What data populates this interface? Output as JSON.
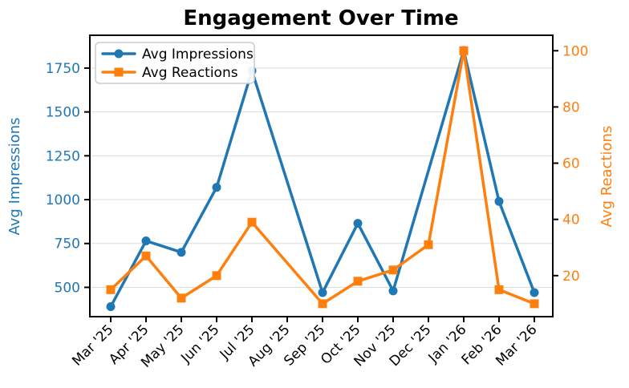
{
  "title": "Engagement Over Time",
  "chart_data": {
    "type": "line",
    "title": "Engagement Over Time",
    "categories": [
      "Mar '25",
      "Apr '25",
      "May '25",
      "Jun '25",
      "Jul '25",
      "Aug '25",
      "Sep '25",
      "Oct '25",
      "Nov '25",
      "Dec '25",
      "Jan '26",
      "Feb '26",
      "Mar '26"
    ],
    "series": [
      {
        "name": "Avg Impressions",
        "axis": "left",
        "color": "#1f77b4",
        "marker": "circle",
        "values": [
          390,
          765,
          700,
          1070,
          1735,
          null,
          470,
          865,
          480,
          null,
          1850,
          990,
          470
        ]
      },
      {
        "name": "Avg Reactions",
        "axis": "right",
        "color": "#ff7f0e",
        "marker": "square",
        "values": [
          15,
          27,
          12,
          20,
          39,
          null,
          10,
          18,
          22,
          31,
          100,
          15,
          10
        ]
      }
    ],
    "ylabel_left": "Avg Impressions",
    "ylabel_right": "Avg Reactions",
    "yticks_left": [
      500,
      750,
      1000,
      1250,
      1500,
      1750
    ],
    "yticks_right": [
      20,
      40,
      60,
      80,
      100
    ],
    "ylim_left": [
      333,
      1937
    ],
    "ylim_right": [
      5.4,
      105.5
    ],
    "grid": true,
    "xtick_rotation": 45,
    "legend": {
      "position": "upper-left",
      "items": [
        "Avg Impressions",
        "Avg Reactions"
      ]
    }
  },
  "colors": {
    "impressions": "#1f77b4",
    "reactions": "#ff7f0e",
    "grid": "#dcdcdc",
    "spine": "#000000",
    "xtick_text": "#000000",
    "legend_border": "#cccccc",
    "legend_bg": "#ffffff"
  }
}
